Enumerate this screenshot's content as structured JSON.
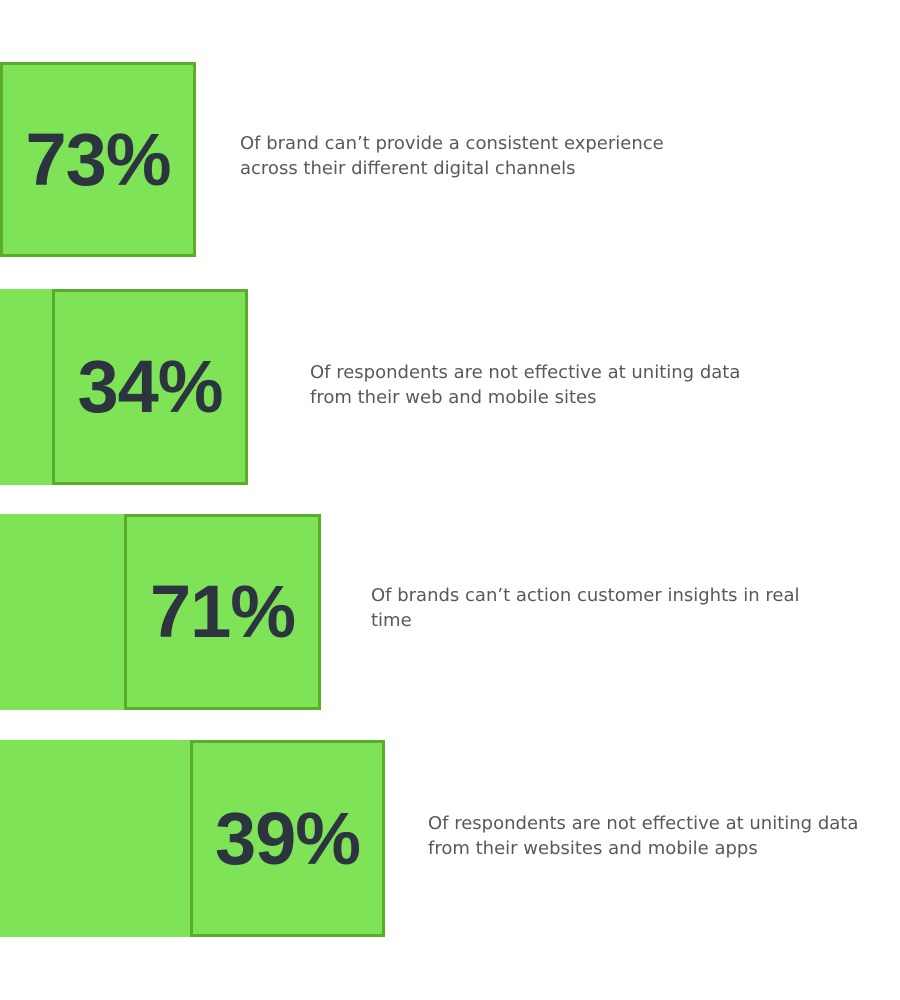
{
  "colors": {
    "band": "#7ee356",
    "box_border": "#5aac2c",
    "percentage_text": "#2c3440",
    "description_text": "#555a60"
  },
  "stats": [
    {
      "percent": "73%",
      "description_line1": "Of brand can’t provide a consistent experience",
      "description_line2": "across their different digital channels"
    },
    {
      "percent": "34%",
      "description_line1": "Of respondents are not effective at uniting data",
      "description_line2": "from their web and mobile sites"
    },
    {
      "percent": "71%",
      "description_line1": "Of brands can’t action customer insights in real",
      "description_line2": "time"
    },
    {
      "percent": "39%",
      "description_line1": "Of respondents are not effective at uniting data",
      "description_line2": "from their websites and mobile apps"
    }
  ]
}
